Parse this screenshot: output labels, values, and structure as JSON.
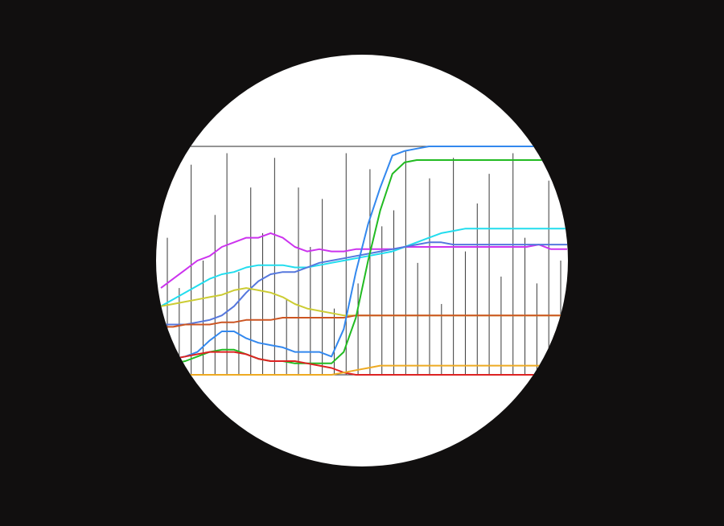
{
  "colors": {
    "background": "#110f0f",
    "lens": "#ffffff",
    "axis": "#555555",
    "bars": "#3a3a3a"
  },
  "chart_data": {
    "type": "line",
    "title": "",
    "xlabel": "",
    "ylabel": "",
    "grid": false,
    "x": [
      0,
      0.03,
      0.06,
      0.09,
      0.12,
      0.15,
      0.18,
      0.21,
      0.24,
      0.27,
      0.3,
      0.33,
      0.36,
      0.39,
      0.42,
      0.45,
      0.48,
      0.51,
      0.54,
      0.57,
      0.6,
      0.63,
      0.66,
      0.69,
      0.72,
      0.75,
      0.78,
      0.81,
      0.84,
      0.87,
      0.9,
      0.93,
      0.96,
      1.0
    ],
    "xlim": [
      0,
      1
    ],
    "ylim": [
      0,
      1
    ],
    "vertical_bars": [
      0.6,
      0.38,
      0.92,
      0.5,
      0.7,
      0.97,
      0.45,
      0.82,
      0.62,
      0.95,
      0.33,
      0.82,
      0.56,
      0.77,
      0.29,
      0.97,
      0.4,
      0.9,
      0.65,
      0.72,
      0.98,
      0.49,
      0.86,
      0.31,
      0.95,
      0.54,
      0.75,
      0.88,
      0.43,
      0.97,
      0.6,
      0.4,
      0.85,
      0.5
    ],
    "series": [
      {
        "color": "#cc33ee",
        "values": [
          0.38,
          0.42,
          0.46,
          0.5,
          0.52,
          0.56,
          0.58,
          0.6,
          0.6,
          0.62,
          0.6,
          0.56,
          0.54,
          0.55,
          0.54,
          0.54,
          0.55,
          0.55,
          0.55,
          0.55,
          0.56,
          0.56,
          0.56,
          0.56,
          0.56,
          0.56,
          0.56,
          0.56,
          0.56,
          0.56,
          0.56,
          0.57,
          0.55,
          0.55
        ]
      },
      {
        "color": "#22ddee",
        "values": [
          0.3,
          0.33,
          0.36,
          0.39,
          0.42,
          0.44,
          0.45,
          0.47,
          0.48,
          0.48,
          0.48,
          0.47,
          0.47,
          0.48,
          0.49,
          0.5,
          0.51,
          0.52,
          0.53,
          0.54,
          0.56,
          0.58,
          0.6,
          0.62,
          0.63,
          0.64,
          0.64,
          0.64,
          0.64,
          0.64,
          0.64,
          0.64,
          0.64,
          0.64
        ]
      },
      {
        "color": "#5577dd",
        "values": [
          0.22,
          0.22,
          0.22,
          0.23,
          0.24,
          0.26,
          0.3,
          0.36,
          0.41,
          0.44,
          0.45,
          0.45,
          0.47,
          0.49,
          0.5,
          0.51,
          0.52,
          0.53,
          0.54,
          0.55,
          0.56,
          0.57,
          0.58,
          0.58,
          0.57,
          0.57,
          0.57,
          0.57,
          0.57,
          0.57,
          0.57,
          0.57,
          0.57,
          0.57
        ]
      },
      {
        "color": "#cccc33",
        "values": [
          0.3,
          0.31,
          0.32,
          0.33,
          0.34,
          0.35,
          0.37,
          0.38,
          0.37,
          0.36,
          0.34,
          0.31,
          0.29,
          0.28,
          0.27,
          0.26,
          0.26,
          0.26,
          0.26,
          0.26,
          0.26,
          0.26,
          0.26,
          0.26,
          0.26,
          0.26,
          0.26,
          0.26,
          0.26,
          0.26,
          0.26,
          0.26,
          0.26,
          0.26
        ]
      },
      {
        "color": "#cc5522",
        "values": [
          0.21,
          0.21,
          0.22,
          0.22,
          0.22,
          0.23,
          0.23,
          0.24,
          0.24,
          0.24,
          0.25,
          0.25,
          0.25,
          0.25,
          0.25,
          0.25,
          0.26,
          0.26,
          0.26,
          0.26,
          0.26,
          0.26,
          0.26,
          0.26,
          0.26,
          0.26,
          0.26,
          0.26,
          0.26,
          0.26,
          0.26,
          0.26,
          0.26,
          0.26
        ]
      },
      {
        "color": "#3388ee",
        "values": [
          0.07,
          0.07,
          0.08,
          0.1,
          0.15,
          0.19,
          0.19,
          0.16,
          0.14,
          0.13,
          0.12,
          0.1,
          0.1,
          0.1,
          0.08,
          0.2,
          0.45,
          0.66,
          0.82,
          0.96,
          0.98,
          0.99,
          1.0,
          1.0,
          1.0,
          1.0,
          1.0,
          1.0,
          1.0,
          1.0,
          1.0,
          1.0,
          1.0,
          1.0
        ]
      },
      {
        "color": "#22bb22",
        "values": [
          0.05,
          0.05,
          0.06,
          0.08,
          0.1,
          0.11,
          0.11,
          0.09,
          0.07,
          0.06,
          0.06,
          0.05,
          0.05,
          0.05,
          0.05,
          0.1,
          0.25,
          0.5,
          0.72,
          0.88,
          0.93,
          0.94,
          0.94,
          0.94,
          0.94,
          0.94,
          0.94,
          0.94,
          0.94,
          0.94,
          0.94,
          0.94,
          0.94,
          0.94
        ]
      },
      {
        "color": "#dd2222",
        "values": [
          0.07,
          0.07,
          0.08,
          0.09,
          0.1,
          0.1,
          0.1,
          0.09,
          0.07,
          0.06,
          0.06,
          0.06,
          0.05,
          0.04,
          0.03,
          0.01,
          0.0,
          0.0,
          0.0,
          0.0,
          0.0,
          0.0,
          0.0,
          0.0,
          0.0,
          0.0,
          0.0,
          0.0,
          0.0,
          0.0,
          0.0,
          0.0,
          0.0,
          0.0
        ]
      },
      {
        "color": "#eeaa22",
        "values": [
          0.0,
          0.0,
          0.0,
          0.0,
          0.0,
          0.0,
          0.0,
          0.0,
          0.0,
          0.0,
          0.0,
          0.0,
          0.0,
          0.0,
          0.0,
          0.01,
          0.02,
          0.03,
          0.04,
          0.04,
          0.04,
          0.04,
          0.04,
          0.04,
          0.04,
          0.04,
          0.04,
          0.04,
          0.04,
          0.04,
          0.04,
          0.04,
          0.04,
          0.04
        ]
      }
    ]
  }
}
